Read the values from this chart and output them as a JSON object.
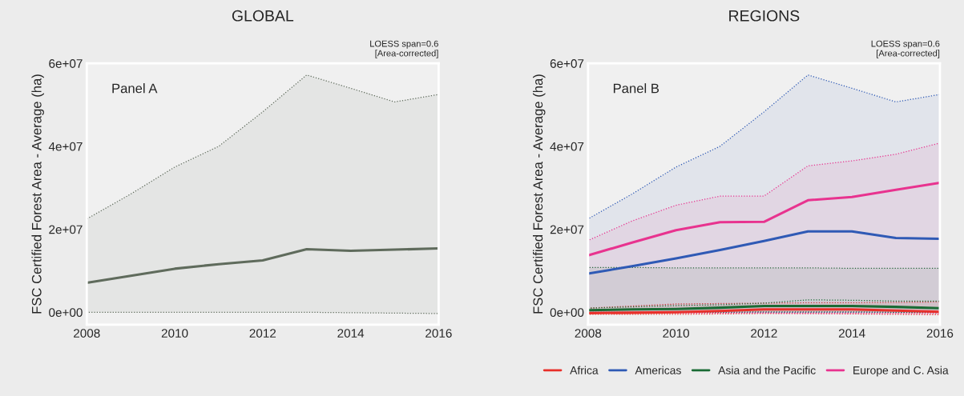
{
  "chart_data": [
    {
      "type": "line",
      "title": "GLOBAL",
      "ylabel": "FSC Certified Forest Area - Average (ha)",
      "annotations": [
        "LOESS span=0.6\n[Area-corrected]",
        "Panel A"
      ],
      "x": [
        2008,
        2009,
        2010,
        2011,
        2012,
        2013,
        2014,
        2015,
        2016
      ],
      "series": [
        {
          "color": "#5f6b5c",
          "values": [
            7100000,
            8800000,
            10500000,
            11600000,
            12500000,
            15200000,
            14800000,
            15100000,
            15400000
          ],
          "lower": [
            0,
            0,
            0,
            0,
            0,
            0,
            -100000,
            -200000,
            -300000
          ],
          "upper": [
            22500000,
            28500000,
            35000000,
            40000000,
            48300000,
            57200000,
            54000000,
            50700000,
            52500000
          ]
        }
      ],
      "xlim": [
        2008,
        2016
      ],
      "ylim": [
        -3000000,
        60000000
      ],
      "xticks": [
        2008,
        2010,
        2012,
        2014,
        2016
      ],
      "yticks": [
        {
          "value": 0,
          "label": "0e+00"
        },
        {
          "value": 20000000,
          "label": "2e+07"
        },
        {
          "value": 40000000,
          "label": "4e+07"
        },
        {
          "value": 60000000,
          "label": "6e+07"
        }
      ],
      "grid": false,
      "line_style": "solid",
      "legend": false
    },
    {
      "type": "line",
      "title": "REGIONS",
      "ylabel": "FSC Certified Forest Area - Average (ha)",
      "annotations": [
        "LOESS span=0.6\n[Area-corrected]",
        "Panel B"
      ],
      "x": [
        2008,
        2009,
        2010,
        2011,
        2012,
        2013,
        2014,
        2015,
        2016
      ],
      "series": [
        {
          "name": "Africa",
          "color": "#e8302a",
          "values": [
            -200000,
            -100000,
            0,
            300000,
            700000,
            700000,
            700000,
            400000,
            100000
          ],
          "lower": [
            -500000,
            -500000,
            -500000,
            -400000,
            -300000,
            -300000,
            -400000,
            -500000,
            -600000
          ],
          "upper": [
            1000000,
            1500000,
            2000000,
            2100000,
            2200000,
            2300000,
            2300000,
            2400000,
            2500000
          ]
        },
        {
          "name": "Americas",
          "color": "#2f5ab5",
          "values": [
            9300000,
            11100000,
            13000000,
            15000000,
            17200000,
            19500000,
            19500000,
            17900000,
            17700000
          ],
          "lower": [
            0,
            0,
            0,
            0,
            0,
            0,
            0,
            0,
            0
          ],
          "upper": [
            22500000,
            28500000,
            35000000,
            40000000,
            48300000,
            57200000,
            54000000,
            50700000,
            52500000
          ]
        },
        {
          "name": "Asia and the Pacific",
          "color": "#1a6b35",
          "values": [
            500000,
            700000,
            800000,
            1100000,
            1500000,
            1500000,
            1500000,
            1300000,
            1000000
          ],
          "lower": [
            -100000,
            -100000,
            0,
            0,
            100000,
            100000,
            100000,
            0,
            -100000
          ],
          "upper": [
            10800000,
            10800000,
            10700000,
            10700000,
            10700000,
            10700000,
            10600000,
            10600000,
            10600000
          ]
        },
        {
          "name": "Europe and C. Asia",
          "color": "#e8338f",
          "values": [
            13700000,
            16800000,
            19800000,
            21700000,
            21800000,
            27000000,
            27800000,
            29500000,
            31200000
          ],
          "lower": [
            -100000,
            -100000,
            -200000,
            -200000,
            -200000,
            -300000,
            -300000,
            -300000,
            -300000
          ],
          "upper": [
            17300000,
            22000000,
            25800000,
            28000000,
            28000000,
            35300000,
            36500000,
            38100000,
            40800000
          ]
        },
        {
          "type": "line",
          "line_style": "dotted",
          "color": "#1a6b35",
          "values": [
            1000000,
            1300000,
            1600000,
            1800000,
            2200000,
            3000000,
            2900000,
            2700000,
            2700000
          ]
        }
      ],
      "xlim": [
        2008,
        2016
      ],
      "ylim": [
        -3000000,
        60000000
      ],
      "xticks": [
        2008,
        2010,
        2012,
        2014,
        2016
      ],
      "yticks": [
        {
          "value": 0,
          "label": "0e+00"
        },
        {
          "value": 20000000,
          "label": "2e+07"
        },
        {
          "value": 40000000,
          "label": "4e+07"
        },
        {
          "value": 60000000,
          "label": "6e+07"
        }
      ],
      "grid": false,
      "line_style": "solid",
      "legend": "bottom"
    }
  ]
}
